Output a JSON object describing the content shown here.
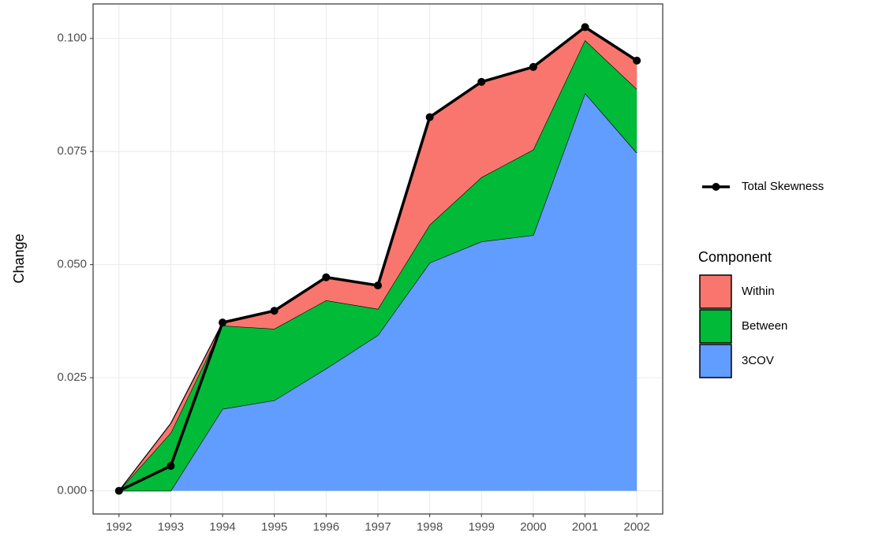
{
  "chart_data": {
    "type": "area",
    "stacked": true,
    "y_label": "Change",
    "x": [
      1992,
      1993,
      1994,
      1995,
      1996,
      1997,
      1998,
      1999,
      2000,
      2001,
      2002
    ],
    "legend_title": "Component",
    "series": [
      {
        "name": "Within",
        "color": "#F8766D",
        "values": [
          0,
          0.0021,
          0.0007,
          0.004,
          0.0051,
          0.0052,
          0.0238,
          0.0211,
          0.0183,
          0.0029,
          0.0063
        ]
      },
      {
        "name": "Between",
        "color": "#00BA38",
        "values": [
          0,
          0.0128,
          0.0184,
          0.0158,
          0.0151,
          0.0058,
          0.0084,
          0.0142,
          0.0189,
          0.0117,
          0.0141
        ]
      },
      {
        "name": "3COV",
        "color": "#619CFF",
        "values": [
          0,
          0,
          0.0181,
          0.02,
          0.027,
          0.0344,
          0.0504,
          0.0551,
          0.0565,
          0.0879,
          0.0747
        ]
      }
    ],
    "line": {
      "name": "Total Skewness",
      "color": "#000000",
      "values": [
        0,
        0.0055,
        0.0372,
        0.0398,
        0.0472,
        0.0454,
        0.0826,
        0.0904,
        0.0937,
        0.1025,
        0.0951
      ]
    },
    "xlim": [
      1991.5,
      2002.5
    ],
    "xticks": [
      1992,
      1993,
      1994,
      1995,
      1996,
      1997,
      1998,
      1999,
      2000,
      2001,
      2002
    ],
    "ylim": [
      -0.005125,
      0.107625
    ],
    "yticks": [
      {
        "value": 0,
        "label": "0.000"
      },
      {
        "value": 0.025,
        "label": "0.025"
      },
      {
        "value": 0.05,
        "label": "0.050"
      },
      {
        "value": 0.075,
        "label": "0.075"
      },
      {
        "value": 0.1,
        "label": "0.100"
      }
    ],
    "grid": true
  }
}
